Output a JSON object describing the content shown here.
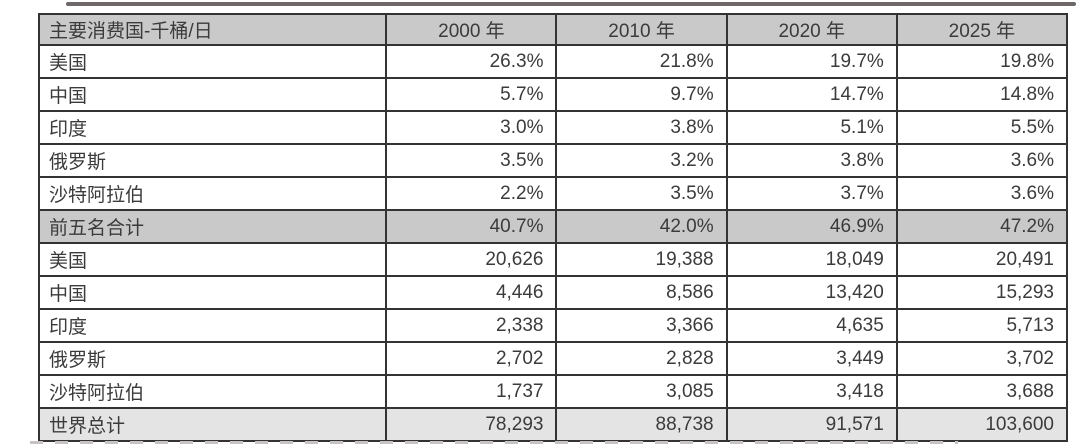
{
  "table": {
    "header": {
      "title": "主要消费国-千桶/日",
      "years": [
        "2000 年",
        "2010 年",
        "2020 年",
        "2025 年"
      ]
    },
    "rows": [
      {
        "label": "美国",
        "values": [
          "26.3%",
          "21.8%",
          "19.7%",
          "19.8%"
        ],
        "kind": "share"
      },
      {
        "label": "中国",
        "values": [
          "5.7%",
          "9.7%",
          "14.7%",
          "14.8%"
        ],
        "kind": "share"
      },
      {
        "label": "印度",
        "values": [
          "3.0%",
          "3.8%",
          "5.1%",
          "5.5%"
        ],
        "kind": "share"
      },
      {
        "label": "俄罗斯",
        "values": [
          "3.5%",
          "3.2%",
          "3.8%",
          "3.6%"
        ],
        "kind": "share"
      },
      {
        "label": "沙特阿拉伯",
        "values": [
          "2.2%",
          "3.5%",
          "3.7%",
          "3.6%"
        ],
        "kind": "share"
      },
      {
        "label": "前五名合计",
        "values": [
          "40.7%",
          "42.0%",
          "46.9%",
          "47.2%"
        ],
        "kind": "share-total"
      },
      {
        "label": "美国",
        "values": [
          "20,626",
          "19,388",
          "18,049",
          "20,491"
        ],
        "kind": "volume"
      },
      {
        "label": "中国",
        "values": [
          "4,446",
          "8,586",
          "13,420",
          "15,293"
        ],
        "kind": "volume"
      },
      {
        "label": "印度",
        "values": [
          "2,338",
          "3,366",
          "4,635",
          "5,713"
        ],
        "kind": "volume"
      },
      {
        "label": "俄罗斯",
        "values": [
          "2,702",
          "2,828",
          "3,449",
          "3,702"
        ],
        "kind": "volume"
      },
      {
        "label": "沙特阿拉伯",
        "values": [
          "1,737",
          "3,085",
          "3,418",
          "3,688"
        ],
        "kind": "volume"
      },
      {
        "label": "世界总计",
        "values": [
          "78,293",
          "88,738",
          "91,571",
          "103,600"
        ],
        "kind": "volume-total"
      }
    ]
  },
  "colors": {
    "header_bg": "#c9c9c9",
    "subtotal_row_bg": "#c9c9c9",
    "world_total_row_bg": "#e4e4e4",
    "border": "#333333",
    "text": "#3b3b3b",
    "top_strip": "#6e6868",
    "bottom_strip": "#c8c2c2"
  },
  "chart_data": {
    "type": "table",
    "title": "主要消费国-千桶/日",
    "columns": [
      "2000 年",
      "2010 年",
      "2020 年",
      "2025 年"
    ],
    "share_of_world_pct": {
      "美国": [
        26.3,
        21.8,
        19.7,
        19.8
      ],
      "中国": [
        5.7,
        9.7,
        14.7,
        14.8
      ],
      "印度": [
        3.0,
        3.8,
        5.1,
        5.5
      ],
      "俄罗斯": [
        3.5,
        3.2,
        3.8,
        3.6
      ],
      "沙特阿拉伯": [
        2.2,
        3.5,
        3.7,
        3.6
      ],
      "前五名合计": [
        40.7,
        42.0,
        46.9,
        47.2
      ]
    },
    "thousand_barrels_per_day": {
      "美国": [
        20626,
        19388,
        18049,
        20491
      ],
      "中国": [
        4446,
        8586,
        13420,
        15293
      ],
      "印度": [
        2338,
        3366,
        4635,
        5713
      ],
      "俄罗斯": [
        2702,
        2828,
        3449,
        3702
      ],
      "沙特阿拉伯": [
        1737,
        3085,
        3418,
        3688
      ],
      "世界总计": [
        78293,
        88738,
        91571,
        103600
      ]
    }
  }
}
